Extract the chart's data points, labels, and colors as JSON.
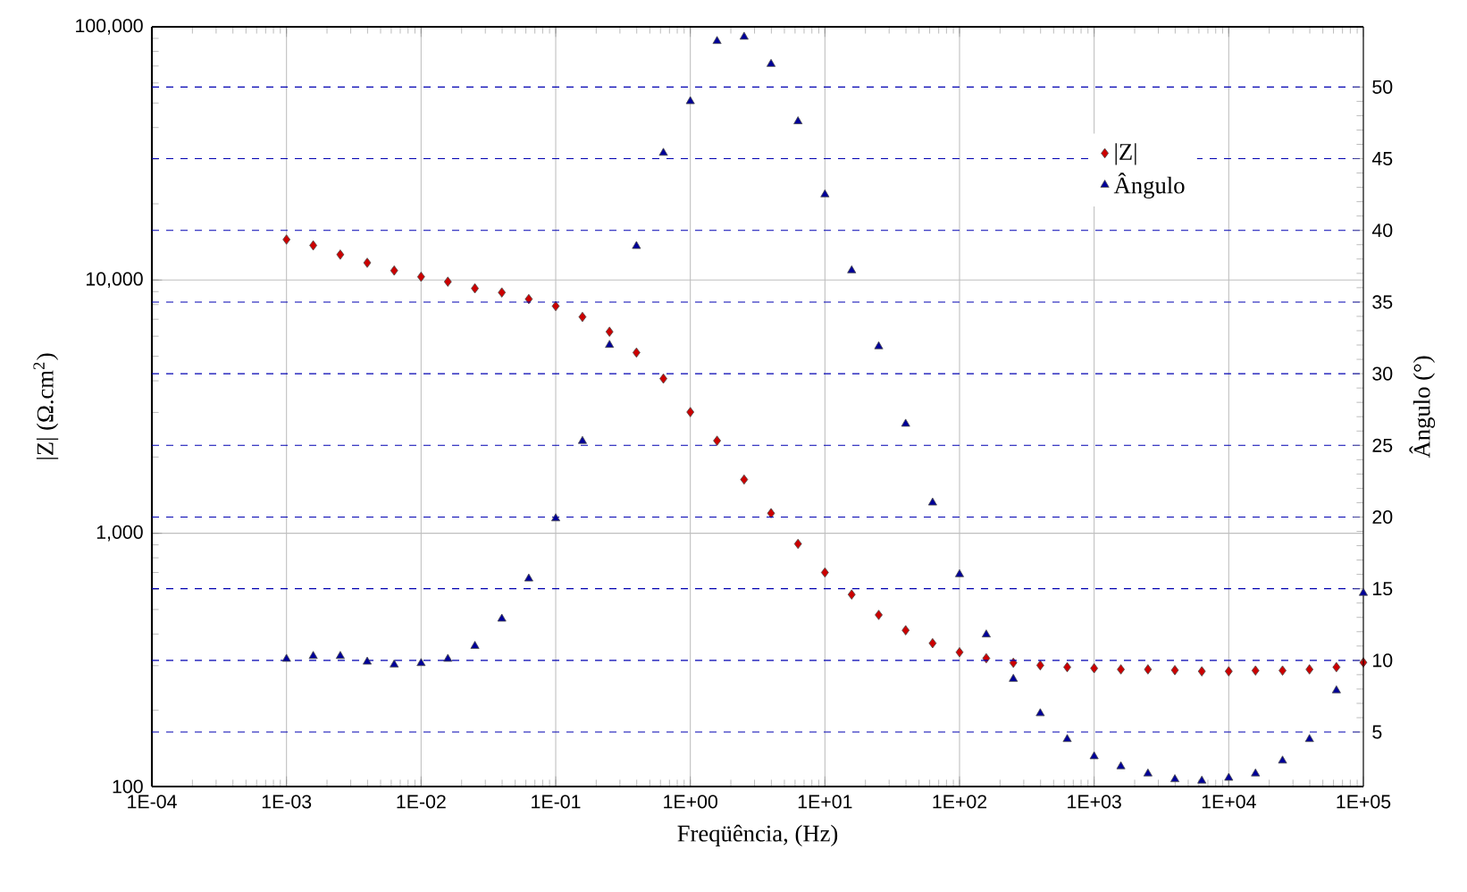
{
  "chart_data": {
    "type": "scatter",
    "xlabel": "Freqüência, (Hz)",
    "ylabel": "|Z| (Ω.cm$^{2}$)",
    "y2label": "Ângulo (°)",
    "x": [
      0.001,
      0.00158,
      0.00251,
      0.00398,
      0.00631,
      0.01,
      0.0158,
      0.0251,
      0.0398,
      0.0631,
      0.1,
      0.158,
      0.251,
      0.398,
      0.631,
      1,
      1.58,
      2.51,
      3.98,
      6.31,
      10,
      15.8,
      25.1,
      39.8,
      63.1,
      100,
      158,
      251,
      398,
      631,
      1000,
      1580,
      2510,
      3980,
      6310,
      10000,
      15800,
      25100,
      39800,
      63100,
      100000
    ],
    "series": [
      {
        "name": "|Z|",
        "color": "#cc0000",
        "marker": "diamond",
        "values": [
          14450,
          13700,
          12600,
          11700,
          10900,
          10300,
          9850,
          9270,
          8930,
          8410,
          7890,
          7150,
          6250,
          5170,
          4080,
          3010,
          2320,
          1630,
          1200,
          908,
          700,
          573,
          476,
          414,
          368,
          339,
          321,
          308,
          301,
          296,
          293,
          290,
          290,
          288,
          285,
          285,
          287,
          287,
          290,
          296,
          309
        ]
      },
      {
        "name": "Ângulo",
        "color": "#000099",
        "marker": "triangle",
        "axis": "y2",
        "values": [
          10.1,
          10.3,
          10.3,
          9.9,
          9.7,
          9.8,
          10.1,
          11.0,
          12.9,
          15.7,
          19.9,
          25.3,
          32.0,
          38.9,
          45.4,
          49.0,
          53.2,
          53.5,
          51.6,
          47.6,
          42.5,
          37.2,
          31.9,
          26.5,
          21.0,
          16.0,
          11.8,
          8.7,
          6.3,
          4.5,
          3.3,
          2.6,
          2.1,
          1.7,
          1.6,
          1.8,
          2.1,
          3.0,
          4.5,
          7.9,
          14.7
        ]
      }
    ],
    "log": "xy",
    "xlim": [
      0.0001,
      100000
    ],
    "xticks": [
      {
        "value": 0.0001,
        "label": "1E-04"
      },
      {
        "value": 0.001,
        "label": "1E-03"
      },
      {
        "value": 0.01,
        "label": "1E-02"
      },
      {
        "value": 0.1,
        "label": "1E-01"
      },
      {
        "value": 1,
        "label": "1E+00"
      },
      {
        "value": 10,
        "label": "1E+01"
      },
      {
        "value": 100,
        "label": "1E+02"
      },
      {
        "value": 1000,
        "label": "1E+03"
      },
      {
        "value": 10000,
        "label": "1E+04"
      },
      {
        "value": 100000,
        "label": "1E+05"
      }
    ],
    "ylim": [
      100,
      100000
    ],
    "yticks": [
      {
        "value": 100,
        "label": "100"
      },
      {
        "value": 1000,
        "label": "1,000"
      },
      {
        "value": 10000,
        "label": "10,000"
      },
      {
        "value": 100000,
        "label": "100,000"
      }
    ],
    "y2lim": [
      1.2,
      54.2
    ],
    "y2ticks": [
      5,
      10,
      15,
      20,
      25,
      30,
      35,
      40,
      45,
      50
    ],
    "grid": true,
    "legend": "top right"
  }
}
